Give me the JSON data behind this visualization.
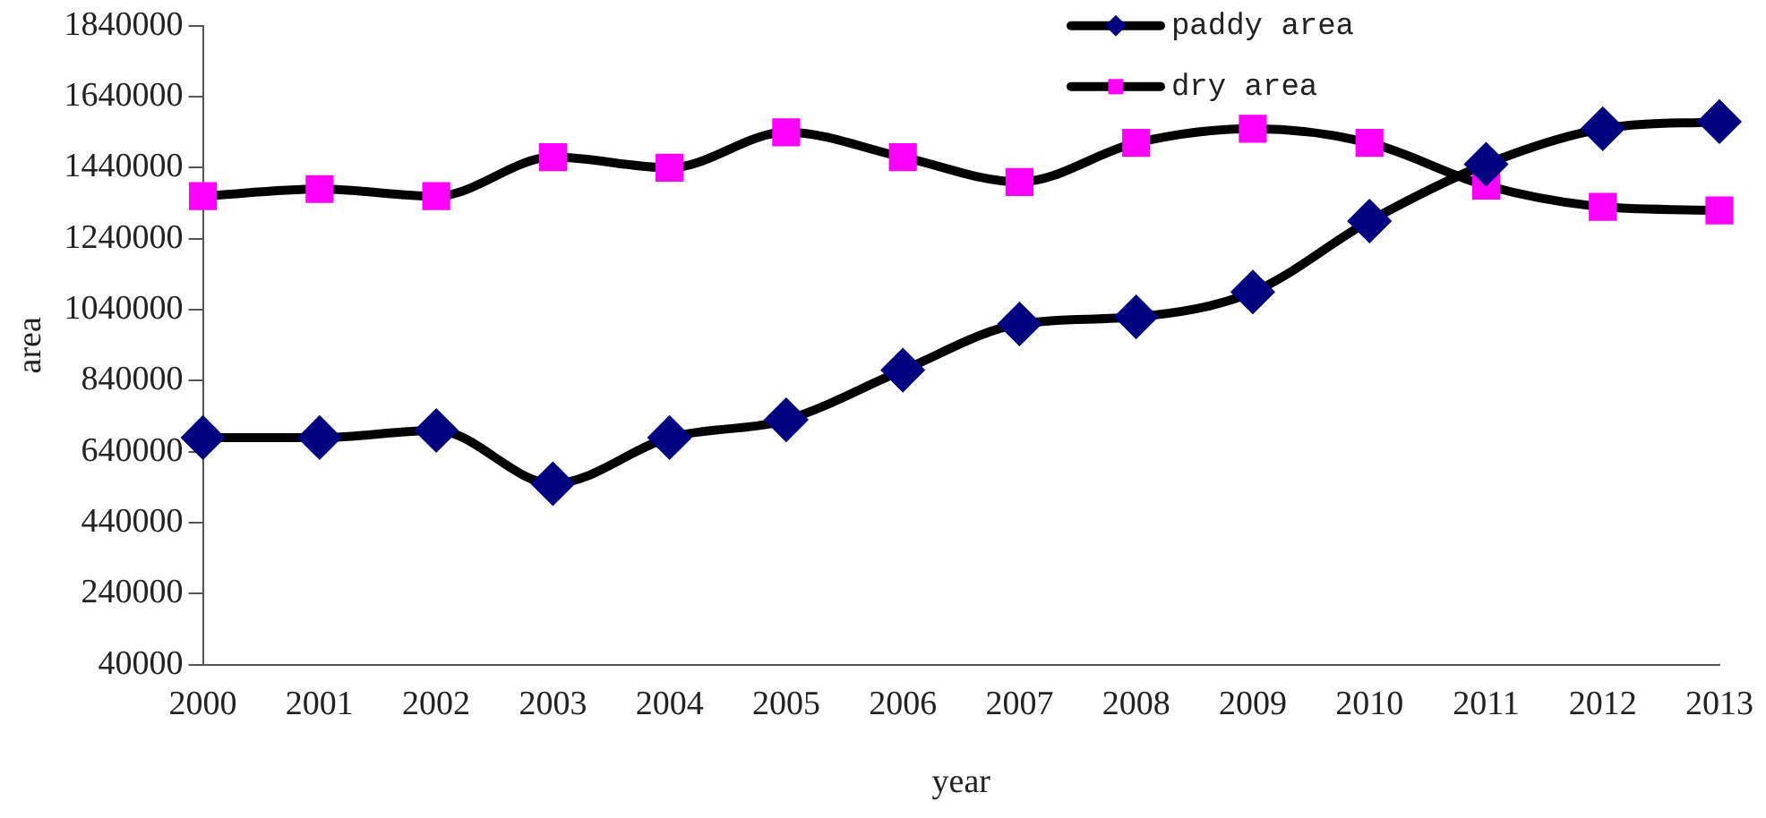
{
  "chart_data": {
    "type": "line",
    "xlabel": "year",
    "ylabel": "area",
    "categories": [
      "2000",
      "2001",
      "2002",
      "2003",
      "2004",
      "2005",
      "2006",
      "2007",
      "2008",
      "2009",
      "2010",
      "2011",
      "2012",
      "2013"
    ],
    "series": [
      {
        "name": "paddy area",
        "color": "#000080",
        "marker": "diamond",
        "values": [
          680000,
          680000,
          700000,
          550000,
          680000,
          730000,
          870000,
          1000000,
          1020000,
          1090000,
          1290000,
          1450000,
          1550000,
          1570000
        ]
      },
      {
        "name": "dry area",
        "color": "#ff00ff",
        "marker": "square",
        "values": [
          1360000,
          1380000,
          1360000,
          1470000,
          1440000,
          1540000,
          1470000,
          1400000,
          1510000,
          1550000,
          1510000,
          1390000,
          1330000,
          1320000
        ]
      }
    ],
    "ylim": [
      40000,
      1840000
    ],
    "yticks": [
      40000,
      240000,
      440000,
      640000,
      840000,
      1040000,
      1240000,
      1440000,
      1640000,
      1840000
    ],
    "grid": false,
    "legend": "top right",
    "line_style": "solid"
  }
}
